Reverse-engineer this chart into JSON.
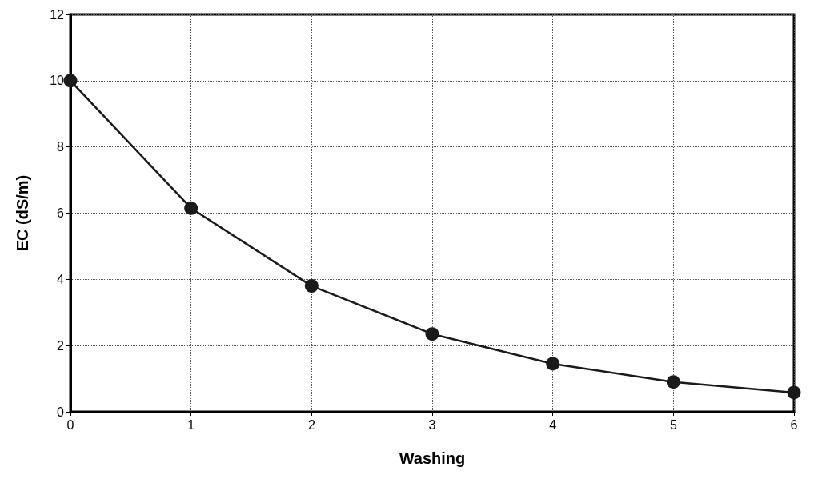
{
  "chart_data": {
    "type": "line",
    "xlabel": "Washing",
    "ylabel": "EC (dS/m)",
    "x": [
      0,
      1,
      2,
      3,
      4,
      5,
      6
    ],
    "series": [
      {
        "color": "#1a1a1a",
        "values": [
          10,
          6.15,
          3.8,
          2.35,
          1.45,
          0.9,
          0.58
        ]
      }
    ],
    "xlim": [
      0,
      6
    ],
    "xticks": [
      0,
      1,
      2,
      3,
      4,
      5,
      6
    ],
    "ylim": [
      0,
      12
    ],
    "yticks": [
      0,
      2,
      4,
      6,
      8,
      10,
      12
    ],
    "grid": true,
    "marker": "circle",
    "line_style": "solid"
  }
}
